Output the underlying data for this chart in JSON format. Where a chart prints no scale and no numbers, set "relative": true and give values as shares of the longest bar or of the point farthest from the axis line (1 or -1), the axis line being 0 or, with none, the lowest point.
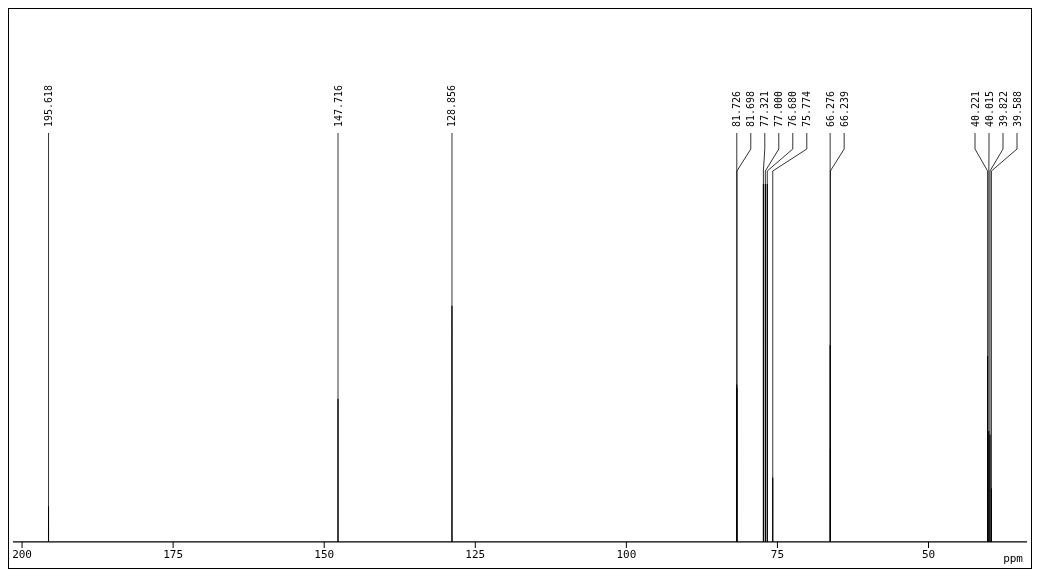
{
  "chart_data": {
    "type": "line",
    "relative": true,
    "xlabel": "ppm",
    "xlim": [
      201.5,
      33.7
    ],
    "xticks": [
      200,
      175,
      150,
      125,
      100,
      75,
      50
    ],
    "grid": false,
    "legend": false,
    "marker": "none",
    "line_style": "solid",
    "x": [
      201.5,
      195.628,
      195.618,
      195.608,
      147.726,
      147.716,
      147.706,
      128.866,
      128.856,
      128.846,
      81.736,
      81.726,
      81.712,
      81.698,
      81.688,
      77.331,
      77.321,
      77.311,
      77.01,
      77.0,
      76.99,
      76.69,
      76.68,
      76.67,
      75.784,
      75.774,
      75.764,
      66.286,
      66.276,
      66.258,
      66.239,
      66.229,
      40.231,
      40.221,
      40.211,
      40.025,
      40.015,
      40.005,
      39.832,
      39.822,
      39.812,
      39.598,
      39.588,
      39.578,
      33.7
    ],
    "series": [
      {
        "color": "#000000",
        "values": [
          0,
          0,
          0.1,
          0,
          0,
          0.4,
          0,
          0,
          0.66,
          0,
          0,
          0.44,
          0,
          0.43,
          0,
          0,
          1,
          0,
          0,
          1,
          0,
          0,
          1,
          0,
          0,
          0.18,
          0,
          0,
          0.55,
          0,
          0.26,
          0,
          0,
          0.52,
          0,
          0,
          0.31,
          0,
          0,
          0.3,
          0,
          0,
          0.15,
          0,
          0
        ]
      }
    ],
    "annotations": [
      {
        "text": "195.618",
        "x": 195.618,
        "y": 0.1
      },
      {
        "text": "147.716",
        "x": 147.716,
        "y": 0.4
      },
      {
        "text": "128.856",
        "x": 128.856,
        "y": 0.66
      },
      {
        "text": "81.726",
        "x": 81.726,
        "y": 0.44
      },
      {
        "text": "81.698",
        "x": 81.698,
        "y": 0.43
      },
      {
        "text": "77.321",
        "x": 77.321,
        "y": 1
      },
      {
        "text": "77.000",
        "x": 77.0,
        "y": 1
      },
      {
        "text": "76.680",
        "x": 76.68,
        "y": 1
      },
      {
        "text": "75.774",
        "x": 75.774,
        "y": 0.18
      },
      {
        "text": "66.276",
        "x": 66.276,
        "y": 0.55
      },
      {
        "text": "66.239",
        "x": 66.239,
        "y": 0.26
      },
      {
        "text": "40.221",
        "x": 40.221,
        "y": 0.52
      },
      {
        "text": "40.015",
        "x": 40.015,
        "y": 0.31
      },
      {
        "text": "39.822",
        "x": 39.822,
        "y": 0.3
      },
      {
        "text": "39.588",
        "x": 39.588,
        "y": 0.15
      }
    ]
  }
}
